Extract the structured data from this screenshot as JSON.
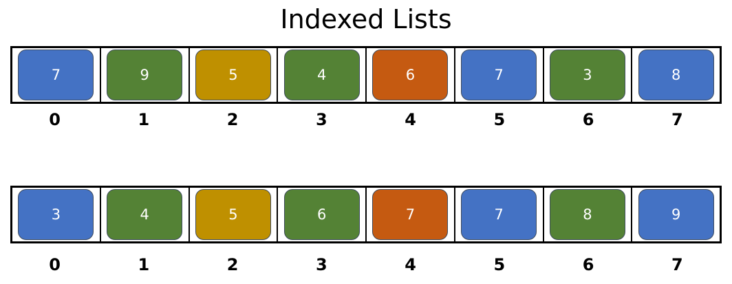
{
  "title": "Indexed Lists",
  "colors": {
    "blue": "#4472c4",
    "green": "#548235",
    "gold": "#bf9000",
    "orange": "#c55a11"
  },
  "lists": [
    {
      "cells": [
        {
          "value": "7",
          "color": "#4472c4"
        },
        {
          "value": "9",
          "color": "#548235"
        },
        {
          "value": "5",
          "color": "#bf9000"
        },
        {
          "value": "4",
          "color": "#548235"
        },
        {
          "value": "6",
          "color": "#c55a11"
        },
        {
          "value": "7",
          "color": "#4472c4"
        },
        {
          "value": "3",
          "color": "#548235"
        },
        {
          "value": "8",
          "color": "#4472c4"
        }
      ],
      "indices": [
        "0",
        "1",
        "2",
        "3",
        "4",
        "5",
        "6",
        "7"
      ]
    },
    {
      "cells": [
        {
          "value": "3",
          "color": "#4472c4"
        },
        {
          "value": "4",
          "color": "#548235"
        },
        {
          "value": "5",
          "color": "#bf9000"
        },
        {
          "value": "6",
          "color": "#548235"
        },
        {
          "value": "7",
          "color": "#c55a11"
        },
        {
          "value": "7",
          "color": "#4472c4"
        },
        {
          "value": "8",
          "color": "#548235"
        },
        {
          "value": "9",
          "color": "#4472c4"
        }
      ],
      "indices": [
        "0",
        "1",
        "2",
        "3",
        "4",
        "5",
        "6",
        "7"
      ]
    }
  ]
}
